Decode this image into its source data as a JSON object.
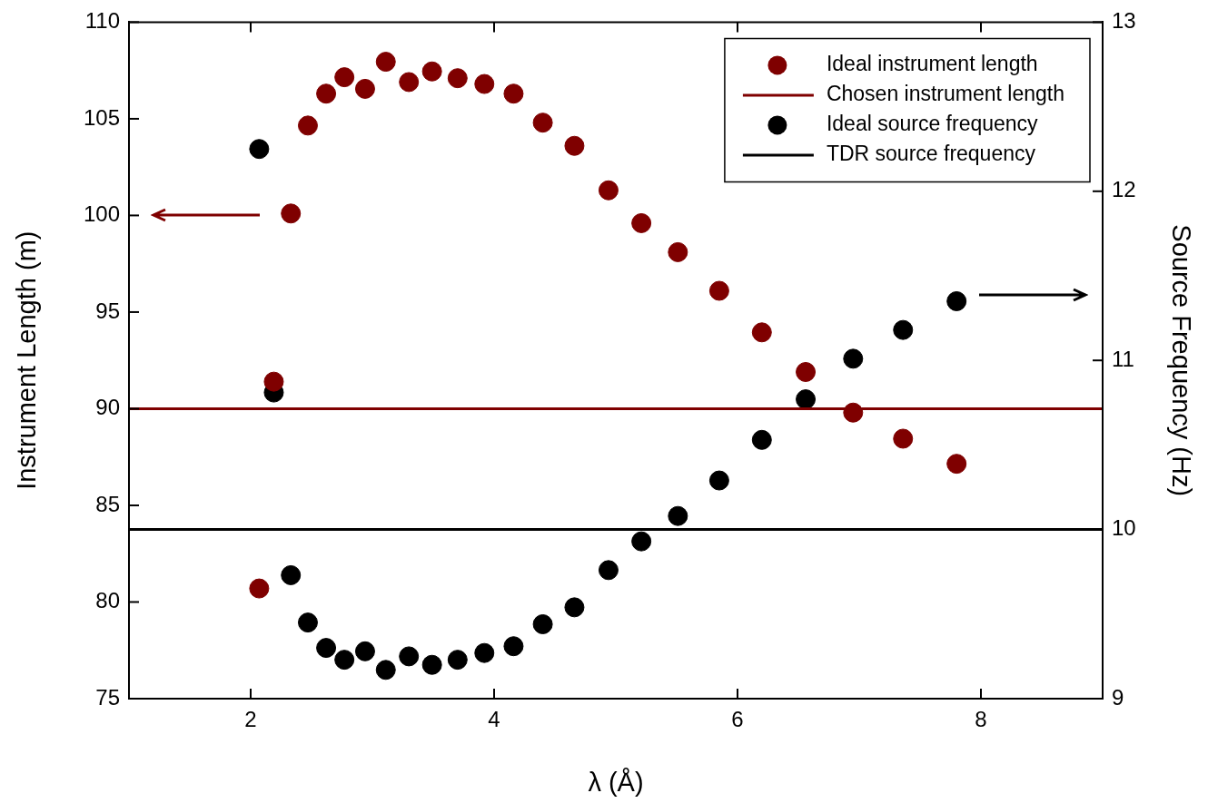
{
  "chart_data": {
    "type": "scatter",
    "xlabel": "λ (Å)",
    "ylabel": "Instrument Length (m)",
    "y2label": "Source Frequency (Hz)",
    "x": [
      2.07,
      2.19,
      2.33,
      2.47,
      2.62,
      2.77,
      2.94,
      3.11,
      3.3,
      3.49,
      3.7,
      3.92,
      4.16,
      4.4,
      4.66,
      4.94,
      5.21,
      5.51,
      5.85,
      6.2,
      6.56,
      6.95,
      7.36,
      7.8
    ],
    "series": [
      {
        "name": "Ideal instrument length",
        "color": "#7f0000",
        "values": [
          80.7,
          91.4,
          100.1,
          104.65,
          106.3,
          107.15,
          106.55,
          107.95,
          106.9,
          107.45,
          107.1,
          106.8,
          106.3,
          104.8,
          103.6,
          101.3,
          99.6,
          98.1,
          96.1,
          93.95,
          91.9,
          89.8,
          88.45,
          87.15
        ]
      },
      {
        "name": "Ideal source frequency",
        "color": "#000000",
        "axis": "y2",
        "values": [
          12.25,
          10.81,
          9.73,
          9.45,
          9.3,
          9.23,
          9.28,
          9.17,
          9.25,
          9.2,
          9.23,
          9.27,
          9.31,
          9.44,
          9.54,
          9.76,
          9.93,
          10.08,
          10.29,
          10.53,
          10.77,
          11.01,
          11.18,
          11.35
        ]
      }
    ],
    "ref_lines": [
      {
        "axis": "y",
        "value": 90,
        "label": "Chosen instrument length",
        "color": "#7f0000"
      },
      {
        "axis": "y2",
        "value": 10,
        "label": "TDR source frequency",
        "color": "#000000"
      }
    ],
    "xlim": [
      1,
      9
    ],
    "xticks": [
      2,
      4,
      6,
      8
    ],
    "ylim": [
      75,
      110
    ],
    "yticks": [
      75,
      80,
      85,
      90,
      95,
      100,
      105,
      110
    ],
    "y2lim": [
      9,
      13
    ],
    "y2ticks": [
      9,
      10,
      11,
      12,
      13
    ],
    "marker": "circle",
    "grid": false,
    "legend": "top right"
  }
}
